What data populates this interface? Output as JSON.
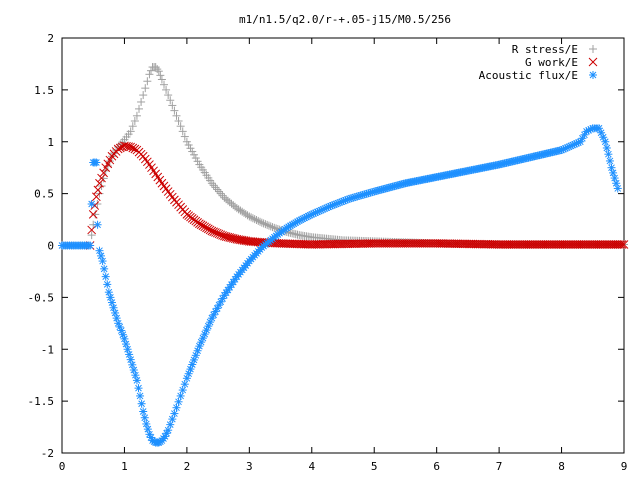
{
  "chart_data": {
    "type": "scatter",
    "title": "m1/n1.5/q2.0/r-+.05-j15/M0.5/256",
    "xlabel": "",
    "ylabel": "",
    "xlim": [
      0,
      9
    ],
    "ylim": [
      -2,
      2
    ],
    "x_ticks": [
      "0",
      "1",
      "2",
      "3",
      "4",
      "5",
      "6",
      "7",
      "8",
      "9"
    ],
    "y_ticks": [
      "-2",
      "-1.5",
      "-1",
      "-0.5",
      "0",
      "0.5",
      "1",
      "1.5",
      "2"
    ],
    "grid": false,
    "legend_position": "top-right",
    "series": [
      {
        "name": "R stress/E",
        "marker": "plus",
        "color": "#a0a0a0",
        "points": [
          [
            0.0,
            0.0
          ],
          [
            0.45,
            0.0
          ],
          [
            0.5,
            0.2
          ],
          [
            0.6,
            0.5
          ],
          [
            0.7,
            0.72
          ],
          [
            0.8,
            0.86
          ],
          [
            0.9,
            0.95
          ],
          [
            1.0,
            1.02
          ],
          [
            1.1,
            1.1
          ],
          [
            1.2,
            1.25
          ],
          [
            1.3,
            1.45
          ],
          [
            1.4,
            1.65
          ],
          [
            1.45,
            1.72
          ],
          [
            1.5,
            1.72
          ],
          [
            1.55,
            1.68
          ],
          [
            1.6,
            1.6
          ],
          [
            1.7,
            1.45
          ],
          [
            1.8,
            1.3
          ],
          [
            1.9,
            1.15
          ],
          [
            2.0,
            1.0
          ],
          [
            2.2,
            0.78
          ],
          [
            2.4,
            0.6
          ],
          [
            2.6,
            0.46
          ],
          [
            2.8,
            0.36
          ],
          [
            3.0,
            0.28
          ],
          [
            3.2,
            0.22
          ],
          [
            3.4,
            0.17
          ],
          [
            3.6,
            0.13
          ],
          [
            3.8,
            0.1
          ],
          [
            4.0,
            0.08
          ],
          [
            4.5,
            0.05
          ],
          [
            5.0,
            0.04
          ],
          [
            5.5,
            0.03
          ],
          [
            6.0,
            0.02
          ],
          [
            7.0,
            0.01
          ],
          [
            8.0,
            0.01
          ],
          [
            9.0,
            0.01
          ]
        ]
      },
      {
        "name": "G work/E",
        "marker": "cross",
        "color": "#cc0000",
        "points": [
          [
            0.45,
            0.0
          ],
          [
            0.5,
            0.3
          ],
          [
            0.55,
            0.47
          ],
          [
            0.6,
            0.6
          ],
          [
            0.7,
            0.75
          ],
          [
            0.8,
            0.86
          ],
          [
            0.9,
            0.93
          ],
          [
            1.0,
            0.96
          ],
          [
            1.1,
            0.95
          ],
          [
            1.2,
            0.92
          ],
          [
            1.3,
            0.86
          ],
          [
            1.4,
            0.78
          ],
          [
            1.5,
            0.69
          ],
          [
            1.6,
            0.6
          ],
          [
            1.7,
            0.52
          ],
          [
            1.8,
            0.44
          ],
          [
            1.9,
            0.37
          ],
          [
            2.0,
            0.3
          ],
          [
            2.2,
            0.21
          ],
          [
            2.4,
            0.14
          ],
          [
            2.6,
            0.09
          ],
          [
            2.8,
            0.06
          ],
          [
            3.0,
            0.04
          ],
          [
            3.2,
            0.03
          ],
          [
            3.5,
            0.02
          ],
          [
            4.0,
            0.01
          ],
          [
            5.0,
            0.02
          ],
          [
            6.0,
            0.02
          ],
          [
            7.0,
            0.01
          ],
          [
            8.0,
            0.01
          ],
          [
            9.0,
            0.01
          ]
        ]
      },
      {
        "name": "Acoustic flux/E",
        "marker": "star",
        "color": "#1e90ff",
        "points": [
          [
            0.0,
            0.0
          ],
          [
            0.45,
            0.0
          ],
          [
            0.5,
            0.8
          ],
          [
            0.55,
            0.8
          ],
          [
            0.57,
            0.2
          ],
          [
            0.6,
            -0.05
          ],
          [
            0.65,
            -0.15
          ],
          [
            0.7,
            -0.3
          ],
          [
            0.75,
            -0.45
          ],
          [
            0.8,
            -0.55
          ],
          [
            0.85,
            -0.65
          ],
          [
            0.9,
            -0.75
          ],
          [
            0.95,
            -0.82
          ],
          [
            1.0,
            -0.9
          ],
          [
            1.05,
            -1.0
          ],
          [
            1.1,
            -1.1
          ],
          [
            1.15,
            -1.2
          ],
          [
            1.2,
            -1.3
          ],
          [
            1.25,
            -1.45
          ],
          [
            1.3,
            -1.6
          ],
          [
            1.35,
            -1.72
          ],
          [
            1.4,
            -1.82
          ],
          [
            1.45,
            -1.88
          ],
          [
            1.5,
            -1.9
          ],
          [
            1.55,
            -1.9
          ],
          [
            1.6,
            -1.88
          ],
          [
            1.65,
            -1.84
          ],
          [
            1.7,
            -1.78
          ],
          [
            1.8,
            -1.62
          ],
          [
            1.9,
            -1.45
          ],
          [
            2.0,
            -1.28
          ],
          [
            2.2,
            -0.97
          ],
          [
            2.4,
            -0.7
          ],
          [
            2.6,
            -0.48
          ],
          [
            2.8,
            -0.3
          ],
          [
            3.0,
            -0.15
          ],
          [
            3.2,
            -0.02
          ],
          [
            3.4,
            0.08
          ],
          [
            3.6,
            0.17
          ],
          [
            3.8,
            0.24
          ],
          [
            4.0,
            0.3
          ],
          [
            4.3,
            0.38
          ],
          [
            4.6,
            0.45
          ],
          [
            5.0,
            0.52
          ],
          [
            5.5,
            0.6
          ],
          [
            6.0,
            0.66
          ],
          [
            6.5,
            0.72
          ],
          [
            7.0,
            0.78
          ],
          [
            7.5,
            0.85
          ],
          [
            8.0,
            0.92
          ],
          [
            8.3,
            1.0
          ],
          [
            8.4,
            1.1
          ],
          [
            8.5,
            1.13
          ],
          [
            8.6,
            1.13
          ],
          [
            8.7,
            1.0
          ],
          [
            8.75,
            0.88
          ],
          [
            8.8,
            0.75
          ],
          [
            8.85,
            0.65
          ],
          [
            8.9,
            0.55
          ]
        ]
      }
    ]
  }
}
